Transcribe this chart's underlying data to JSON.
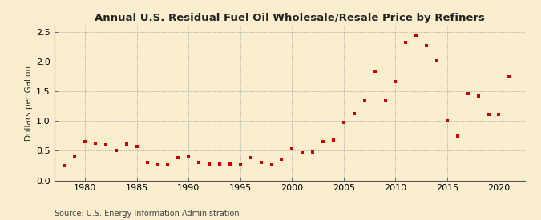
{
  "title": "Annual U.S. Residual Fuel Oil Wholesale/Resale Price by Refiners",
  "ylabel": "Dollars per Gallon",
  "source": "Source: U.S. Energy Information Administration",
  "marker_color": "#cc0000",
  "background_color": "#faeecf",
  "grid_color": "#999999",
  "years": [
    1978,
    1979,
    1980,
    1981,
    1982,
    1983,
    1984,
    1985,
    1986,
    1987,
    1988,
    1989,
    1990,
    1991,
    1992,
    1993,
    1994,
    1995,
    1996,
    1997,
    1998,
    1999,
    2000,
    2001,
    2002,
    2003,
    2004,
    2005,
    2006,
    2007,
    2008,
    2009,
    2010,
    2011,
    2012,
    2013,
    2014,
    2015,
    2016,
    2017,
    2018,
    2019,
    2020,
    2021
  ],
  "values": [
    0.25,
    0.4,
    0.65,
    0.63,
    0.6,
    0.5,
    0.62,
    0.57,
    0.3,
    0.27,
    0.27,
    0.38,
    0.4,
    0.3,
    0.28,
    0.28,
    0.28,
    0.27,
    0.38,
    0.3,
    0.27,
    0.36,
    0.54,
    0.47,
    0.48,
    0.65,
    0.68,
    0.98,
    1.13,
    1.35,
    1.85,
    1.34,
    1.67,
    2.33,
    2.45,
    2.28,
    2.02,
    1.0,
    0.75,
    1.47,
    1.42,
    1.12,
    1.12,
    1.75
  ],
  "xlim": [
    1977,
    2022.5
  ],
  "ylim": [
    0.0,
    2.6
  ],
  "yticks": [
    0.0,
    0.5,
    1.0,
    1.5,
    2.0,
    2.5
  ],
  "xticks": [
    1980,
    1985,
    1990,
    1995,
    2000,
    2005,
    2010,
    2015,
    2020
  ],
  "title_fontsize": 9.5,
  "ylabel_fontsize": 7.5,
  "tick_fontsize": 8,
  "source_fontsize": 7
}
